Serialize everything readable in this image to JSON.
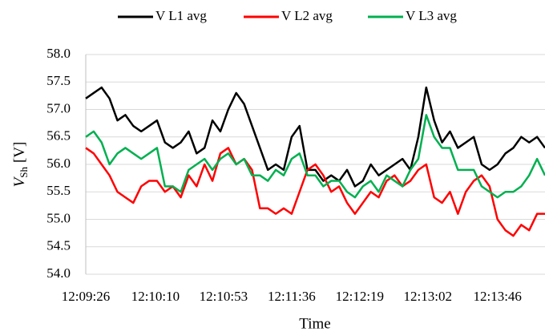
{
  "chart_data": {
    "type": "line",
    "y_label": {
      "symbol": "V",
      "subscript": "Sh",
      "unit": "[V]"
    },
    "x_label": "Time",
    "x": [
      0,
      5,
      10,
      15,
      20,
      25,
      30,
      35,
      40,
      45,
      50,
      55,
      60,
      65,
      70,
      75,
      80,
      85,
      90,
      95,
      100,
      105,
      110,
      115,
      120,
      125,
      130,
      135,
      140,
      145,
      150,
      155,
      160,
      165,
      170,
      175,
      180,
      185,
      190,
      195,
      200,
      205,
      210,
      215,
      220,
      225,
      230,
      235,
      240,
      245,
      250,
      255,
      260,
      265,
      270,
      275,
      280,
      285,
      290
    ],
    "series": [
      {
        "name": "V L1 avg",
        "color": "#000000",
        "values": [
          57.2,
          57.3,
          57.4,
          57.2,
          56.8,
          56.9,
          56.7,
          56.6,
          56.7,
          56.8,
          56.4,
          56.3,
          56.4,
          56.6,
          56.2,
          56.3,
          56.8,
          56.6,
          57.0,
          57.3,
          57.1,
          56.7,
          56.3,
          55.9,
          56.0,
          55.9,
          56.5,
          56.7,
          55.9,
          55.9,
          55.7,
          55.8,
          55.7,
          55.9,
          55.6,
          55.7,
          56.0,
          55.8,
          55.9,
          56.0,
          56.1,
          55.9,
          56.5,
          57.4,
          56.8,
          56.4,
          56.6,
          56.3,
          56.4,
          56.5,
          56.0,
          55.9,
          56.0,
          56.2,
          56.3,
          56.5,
          56.4,
          56.5,
          56.3
        ]
      },
      {
        "name": "V L2 avg",
        "color": "#ff0000",
        "values": [
          56.3,
          56.2,
          56.0,
          55.8,
          55.5,
          55.4,
          55.3,
          55.6,
          55.7,
          55.7,
          55.5,
          55.6,
          55.4,
          55.8,
          55.6,
          56.0,
          55.7,
          56.2,
          56.3,
          56.0,
          56.1,
          55.9,
          55.2,
          55.2,
          55.1,
          55.2,
          55.1,
          55.5,
          55.9,
          56.0,
          55.8,
          55.5,
          55.6,
          55.3,
          55.1,
          55.3,
          55.5,
          55.4,
          55.7,
          55.8,
          55.6,
          55.7,
          55.9,
          56.0,
          55.4,
          55.3,
          55.5,
          55.1,
          55.5,
          55.7,
          55.8,
          55.6,
          55.0,
          54.8,
          54.7,
          54.9,
          54.8,
          55.1,
          55.1
        ]
      },
      {
        "name": "V L3 avg",
        "color": "#00b050",
        "values": [
          56.5,
          56.6,
          56.4,
          56.0,
          56.2,
          56.3,
          56.2,
          56.1,
          56.2,
          56.3,
          55.6,
          55.6,
          55.5,
          55.9,
          56.0,
          56.1,
          55.9,
          56.1,
          56.2,
          56.0,
          56.1,
          55.8,
          55.8,
          55.7,
          55.9,
          55.8,
          56.1,
          56.2,
          55.8,
          55.8,
          55.6,
          55.7,
          55.7,
          55.5,
          55.4,
          55.6,
          55.7,
          55.5,
          55.8,
          55.7,
          55.6,
          55.9,
          56.1,
          56.9,
          56.5,
          56.3,
          56.3,
          55.9,
          55.9,
          55.9,
          55.6,
          55.5,
          55.4,
          55.5,
          55.5,
          55.6,
          55.8,
          56.1,
          55.8
        ]
      }
    ],
    "xlim": [
      0,
      290
    ],
    "xticks": [
      {
        "value": 0,
        "label": "12:09:26"
      },
      {
        "value": 44,
        "label": "12:10:10"
      },
      {
        "value": 87,
        "label": "12:10:53"
      },
      {
        "value": 130,
        "label": "12:11:36"
      },
      {
        "value": 173,
        "label": "12:12:19"
      },
      {
        "value": 216,
        "label": "12:13:02"
      },
      {
        "value": 260,
        "label": "12:13:46"
      }
    ],
    "ylim": [
      54,
      58
    ],
    "yticks": [
      {
        "value": 54,
        "label": "54.0"
      },
      {
        "value": 54.5,
        "label": "54.5"
      },
      {
        "value": 55,
        "label": "55.0"
      },
      {
        "value": 55.5,
        "label": "55.5"
      },
      {
        "value": 56,
        "label": "56.0"
      },
      {
        "value": 56.5,
        "label": "56.5"
      },
      {
        "value": 57,
        "label": "57.0"
      },
      {
        "value": 57.5,
        "label": "57.5"
      },
      {
        "value": 58,
        "label": "58.0"
      }
    ],
    "grid": true,
    "legend": "top"
  }
}
